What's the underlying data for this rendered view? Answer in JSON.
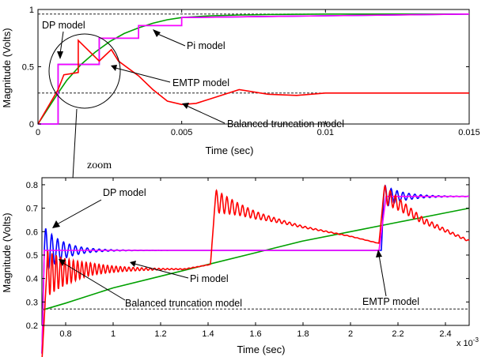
{
  "zoom_label": "zoom",
  "chart_data": [
    {
      "type": "line",
      "xlabel": "Time (sec)",
      "ylabel": "Magnitude (Volts)",
      "xlim": [
        0,
        0.015
      ],
      "ylim": [
        0,
        1
      ],
      "xticks": [
        0,
        0.005,
        0.01,
        0.015
      ],
      "xtick_labels": [
        "0",
        "0.005",
        "0.01",
        "0.015"
      ],
      "yticks": [
        0,
        0.5,
        1
      ],
      "ytick_labels": [
        "0",
        "0.5",
        "1"
      ],
      "reference_lines": [
        0.96,
        0.27
      ],
      "series": [
        {
          "name": "Pi model",
          "color": "#00a000",
          "x": [
            0,
            0.0007,
            0.001,
            0.0015,
            0.002,
            0.0025,
            0.003,
            0.0035,
            0.004,
            0.0045,
            0.005,
            0.006,
            0.007,
            0.008,
            0.009,
            0.01,
            0.012,
            0.015
          ],
          "y": [
            0,
            0.27,
            0.38,
            0.52,
            0.63,
            0.72,
            0.79,
            0.84,
            0.88,
            0.91,
            0.93,
            0.945,
            0.952,
            0.956,
            0.958,
            0.96,
            0.96,
            0.96
          ]
        },
        {
          "name": "DP model",
          "color": "#0000ff",
          "x": [
            0,
            0.0007,
            0.0007,
            0.00213,
            0.00213,
            0.0035,
            0.0035,
            0.005,
            0.005,
            0.015
          ],
          "y": [
            0,
            0,
            0.52,
            0.52,
            0.75,
            0.75,
            0.86,
            0.86,
            0.93,
            0.96
          ]
        },
        {
          "name": "EMTP model",
          "color": "#ff00ff",
          "x": [
            0,
            0.0007,
            0.0007,
            0.00213,
            0.00213,
            0.0035,
            0.0035,
            0.005,
            0.005,
            0.015
          ],
          "y": [
            0,
            0,
            0.52,
            0.52,
            0.75,
            0.75,
            0.86,
            0.86,
            0.93,
            0.96
          ]
        },
        {
          "name": "Balanced truncation model",
          "color": "#ff0000",
          "x": [
            0,
            0.0007,
            0.0009,
            0.0014,
            0.0014,
            0.00213,
            0.00255,
            0.0028,
            0.0035,
            0.004,
            0.0045,
            0.005,
            0.0055,
            0.006,
            0.007,
            0.008,
            0.009,
            0.01,
            0.012,
            0.015
          ],
          "y": [
            0,
            0.3,
            0.43,
            0.45,
            0.73,
            0.55,
            0.65,
            0.55,
            0.42,
            0.3,
            0.2,
            0.17,
            0.18,
            0.22,
            0.3,
            0.26,
            0.25,
            0.27,
            0.27,
            0.27
          ]
        }
      ],
      "annotations": [
        "DP model",
        "Pi model",
        "EMTP model",
        "Balanced truncation model"
      ]
    },
    {
      "type": "line",
      "xlabel": "Time (sec)",
      "ylabel": "Magnitude (Volts)",
      "xlim": [
        0.7,
        2.5
      ],
      "ylim": [
        0.2,
        0.83
      ],
      "x_multiplier": "x 10",
      "x_exponent": "-3",
      "xticks": [
        0.8,
        1,
        1.2,
        1.4,
        1.6,
        1.8,
        2,
        2.2,
        2.4
      ],
      "xtick_labels": [
        "0.8",
        "1",
        "1.2",
        "1.4",
        "1.6",
        "1.8",
        "2",
        "2.2",
        "2.4"
      ],
      "yticks": [
        0.2,
        0.3,
        0.4,
        0.5,
        0.6,
        0.7,
        0.8
      ],
      "ytick_labels": [
        "0.2",
        "0.3",
        "0.4",
        "0.5",
        "0.6",
        "0.7",
        "0.8"
      ],
      "reference_lines": [
        0.27
      ],
      "series": [
        {
          "name": "Pi model",
          "color": "#00a000",
          "x": [
            0.7,
            0.8,
            1.0,
            1.2,
            1.4,
            1.6,
            1.8,
            2.0,
            2.2,
            2.4,
            2.5
          ],
          "y": [
            0.265,
            0.295,
            0.36,
            0.41,
            0.46,
            0.51,
            0.56,
            0.6,
            0.64,
            0.68,
            0.7
          ]
        },
        {
          "name": "DP model",
          "color": "#0000ff",
          "x": [
            0.7,
            0.71,
            2.13,
            2.14,
            2.5
          ],
          "y": [
            0.08,
            0.52,
            0.52,
            0.75,
            0.75
          ],
          "oscillations": [
            {
              "t0": 0.71,
              "level": 0.52,
              "amp": 0.1,
              "decay": 0.08,
              "period": 0.025
            },
            {
              "t0": 2.14,
              "level": 0.75,
              "amp": 0.05,
              "decay": 0.08,
              "period": 0.025
            }
          ]
        },
        {
          "name": "EMTP model",
          "color": "#ff00ff",
          "x": [
            0.7,
            0.71,
            2.12,
            2.15,
            2.5
          ],
          "y": [
            0.08,
            0.52,
            0.52,
            0.75,
            0.75
          ]
        },
        {
          "name": "Balanced truncation model",
          "color": "#ff0000",
          "x": [
            0.7,
            0.72,
            0.9,
            1.1,
            1.3,
            1.41,
            1.43,
            1.6,
            1.8,
            2.0,
            2.12,
            2.14,
            2.3,
            2.5
          ],
          "y": [
            0.05,
            0.42,
            0.44,
            0.44,
            0.44,
            0.46,
            0.73,
            0.67,
            0.62,
            0.58,
            0.55,
            0.76,
            0.65,
            0.56
          ],
          "oscillations": [
            {
              "t0": 0.72,
              "level": 0.44,
              "amp": 0.1,
              "decay": 0.14,
              "period": 0.018
            },
            {
              "t0": 1.43,
              "level": 0.0,
              "amp": 0.05,
              "decay": 0.15,
              "period": 0.022
            },
            {
              "t0": 2.14,
              "level": 0.0,
              "amp": 0.04,
              "decay": 0.15,
              "period": 0.022
            }
          ]
        }
      ],
      "annotations": [
        "DP model",
        "Pi model",
        "Balanced truncation model",
        "EMTP model"
      ]
    }
  ]
}
